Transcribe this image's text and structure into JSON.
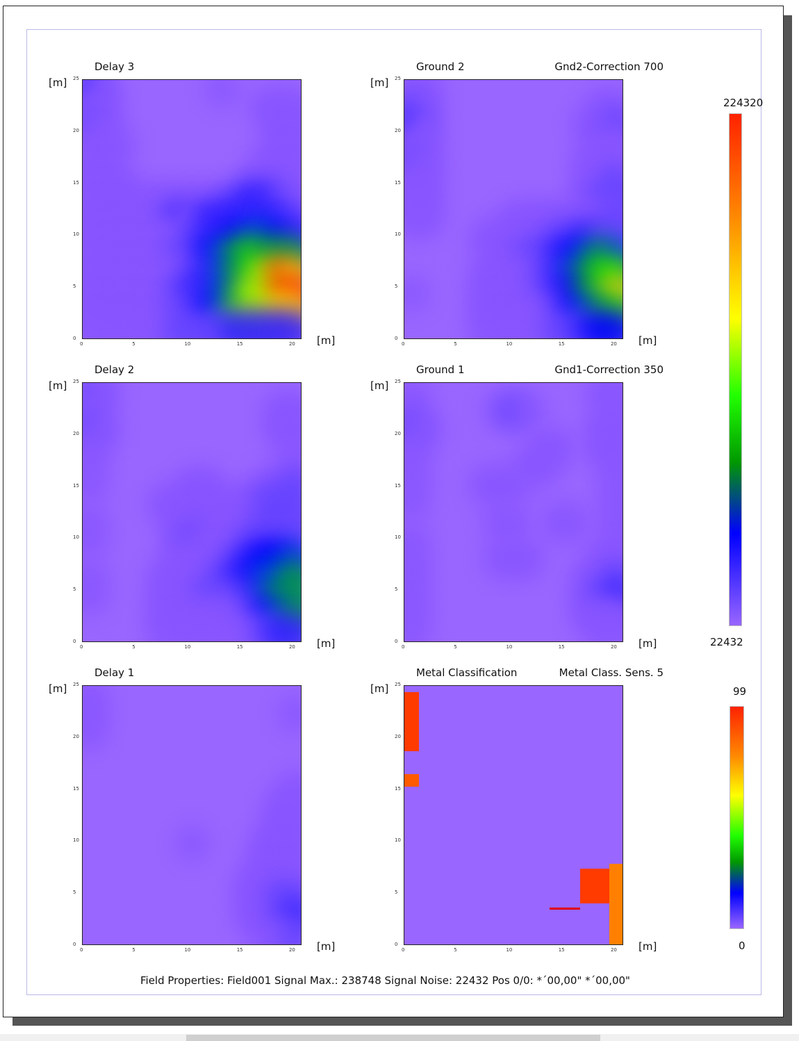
{
  "panels": [
    {
      "key": "delay3",
      "title": "Delay 3",
      "correction": ""
    },
    {
      "key": "ground2",
      "title": "Ground 2",
      "correction": "Gnd2-Correction  700"
    },
    {
      "key": "delay2",
      "title": "Delay 2",
      "correction": ""
    },
    {
      "key": "ground1",
      "title": "Ground 1",
      "correction": "Gnd1-Correction  350"
    },
    {
      "key": "delay1",
      "title": "Delay 1",
      "correction": ""
    },
    {
      "key": "metal",
      "title": "Metal Classification",
      "correction": "Metal Class. Sens.  5"
    }
  ],
  "axis_unit": "[m]",
  "colorbar_signal": {
    "max": "224320",
    "min": "22432"
  },
  "colorbar_metal": {
    "max": "99",
    "min": "0"
  },
  "footer": "Field Properties: Field001  Signal Max.:  238748  Signal Noise:  22432  Pos 0/0: *´00,00\"   *´00,00\"",
  "chart_data": {
    "type": "heatmap",
    "x_ticks": [
      "0",
      "5",
      "10",
      "15",
      "20"
    ],
    "y_ticks": [
      "0",
      "5",
      "10",
      "15",
      "20",
      "25"
    ],
    "xlim": [
      0,
      21
    ],
    "ylim": [
      0,
      25
    ],
    "colorscale": [
      "#9966ff",
      "#0000ff",
      "#00ff00",
      "#ffff00",
      "#ff0000"
    ],
    "colors": {
      "background": "#9966ff",
      "metal_red": "#ff3b00",
      "metal_orange": "#ff8000",
      "metal_line": "#e00000"
    },
    "grids": {
      "delay3": [
        [
          3,
          1,
          0,
          0,
          0,
          0,
          0,
          0,
          0,
          1,
          0,
          0,
          0,
          0,
          0
        ],
        [
          1,
          1,
          0,
          0,
          0,
          0,
          0,
          0,
          0,
          0,
          0,
          0,
          1,
          1,
          1
        ],
        [
          2,
          1,
          0,
          0,
          0,
          0,
          0,
          0,
          0,
          0,
          0,
          0,
          0,
          1,
          1
        ],
        [
          1,
          1,
          1,
          0,
          0,
          0,
          0,
          0,
          0,
          0,
          0,
          0,
          0,
          1,
          1
        ],
        [
          1,
          1,
          0,
          0,
          0,
          0,
          0,
          0,
          0,
          0,
          0,
          0,
          1,
          1,
          1
        ],
        [
          1,
          1,
          1,
          0,
          0,
          0,
          0,
          0,
          0,
          0,
          0,
          1,
          1,
          1,
          1
        ],
        [
          1,
          1,
          1,
          1,
          1,
          1,
          1,
          1,
          1,
          1,
          2,
          3,
          3,
          2,
          1
        ],
        [
          1,
          1,
          1,
          1,
          1,
          1,
          3,
          1,
          3,
          3,
          3,
          3,
          3,
          3,
          2
        ],
        [
          1,
          1,
          1,
          1,
          1,
          1,
          1,
          2,
          3,
          3,
          4,
          5,
          5,
          4,
          3
        ],
        [
          1,
          1,
          1,
          1,
          1,
          1,
          2,
          2,
          4,
          5,
          6,
          7,
          6,
          6,
          6
        ],
        [
          1,
          1,
          1,
          1,
          1,
          1,
          1,
          2,
          3,
          5,
          6,
          7,
          8,
          10,
          9
        ],
        [
          1,
          1,
          1,
          1,
          1,
          1,
          2,
          3,
          3,
          5,
          6,
          8,
          8,
          10,
          10
        ],
        [
          1,
          1,
          1,
          1,
          1,
          1,
          2,
          2,
          4,
          5,
          7,
          8,
          8,
          9,
          9
        ],
        [
          1,
          1,
          1,
          1,
          1,
          1,
          2,
          2,
          2,
          2,
          3,
          3,
          3,
          3,
          3
        ]
      ],
      "ground2": [
        [
          1,
          1,
          0,
          0,
          0,
          0,
          0,
          0,
          0,
          0,
          0,
          0,
          0,
          0,
          0
        ],
        [
          2,
          1,
          0,
          0,
          0,
          0,
          0,
          0,
          0,
          0,
          0,
          0,
          0,
          1,
          1
        ],
        [
          3,
          1,
          0,
          0,
          0,
          0,
          0,
          0,
          0,
          0,
          0,
          0,
          1,
          1,
          2
        ],
        [
          1,
          1,
          0,
          0,
          0,
          0,
          0,
          0,
          0,
          0,
          0,
          0,
          0,
          1,
          1
        ],
        [
          2,
          1,
          0,
          0,
          0,
          0,
          0,
          0,
          0,
          0,
          0,
          0,
          1,
          1,
          1
        ],
        [
          1,
          1,
          0,
          0,
          0,
          0,
          0,
          0,
          0,
          0,
          0,
          0,
          1,
          1,
          2
        ],
        [
          1,
          1,
          0,
          0,
          0,
          0,
          0,
          0,
          0,
          0,
          0,
          0,
          1,
          2,
          2
        ],
        [
          1,
          1,
          0,
          0,
          0,
          0,
          0,
          1,
          1,
          1,
          1,
          1,
          1,
          1,
          2
        ],
        [
          0,
          0,
          0,
          0,
          0,
          1,
          1,
          1,
          1,
          1,
          2,
          2,
          3,
          2,
          2
        ],
        [
          0,
          0,
          0,
          0,
          0,
          0,
          1,
          1,
          2,
          2,
          3,
          4,
          5,
          6,
          5
        ],
        [
          0,
          0,
          0,
          0,
          0,
          1,
          1,
          1,
          1,
          2,
          3,
          5,
          6,
          7,
          7
        ],
        [
          1,
          0,
          0,
          0,
          0,
          1,
          1,
          1,
          1,
          2,
          3,
          4,
          6,
          7,
          9
        ],
        [
          0,
          0,
          0,
          0,
          0,
          1,
          1,
          1,
          1,
          1,
          2,
          4,
          5,
          6,
          7
        ],
        [
          0,
          0,
          0,
          0,
          0,
          1,
          1,
          1,
          1,
          1,
          2,
          2,
          3,
          4,
          4
        ]
      ],
      "delay2": [
        [
          2,
          1,
          0,
          0,
          0,
          0,
          0,
          0,
          0,
          0,
          0,
          0,
          0,
          0,
          0
        ],
        [
          1,
          0,
          0,
          0,
          0,
          0,
          0,
          0,
          0,
          0,
          0,
          0,
          0,
          1,
          1
        ],
        [
          2,
          1,
          0,
          0,
          0,
          0,
          0,
          0,
          0,
          0,
          0,
          0,
          0,
          1,
          1
        ],
        [
          1,
          0,
          0,
          0,
          0,
          0,
          0,
          0,
          0,
          0,
          0,
          0,
          0,
          0,
          1
        ],
        [
          1,
          0,
          0,
          0,
          0,
          0,
          0,
          0,
          0,
          0,
          0,
          0,
          0,
          0,
          1
        ],
        [
          1,
          0,
          0,
          0,
          0,
          0,
          0,
          1,
          1,
          0,
          0,
          0,
          1,
          1,
          2
        ],
        [
          0,
          0,
          0,
          0,
          0,
          1,
          1,
          1,
          1,
          1,
          1,
          1,
          2,
          2,
          2
        ],
        [
          1,
          0,
          0,
          0,
          0,
          0,
          1,
          1,
          1,
          1,
          1,
          1,
          2,
          2,
          2
        ],
        [
          1,
          0,
          0,
          0,
          0,
          0,
          1,
          2,
          1,
          1,
          1,
          2,
          2,
          2,
          2
        ],
        [
          0,
          0,
          0,
          0,
          0,
          0,
          1,
          1,
          1,
          1,
          2,
          3,
          4,
          4,
          5
        ],
        [
          1,
          0,
          0,
          0,
          0,
          1,
          1,
          1,
          1,
          2,
          3,
          4,
          5,
          5,
          6
        ],
        [
          1,
          0,
          0,
          0,
          0,
          1,
          1,
          1,
          2,
          2,
          2,
          3,
          5,
          6,
          6
        ],
        [
          0,
          0,
          0,
          0,
          0,
          1,
          1,
          1,
          1,
          1,
          1,
          2,
          4,
          5,
          6
        ],
        [
          0,
          0,
          0,
          0,
          0,
          1,
          1,
          1,
          1,
          1,
          1,
          1,
          2,
          3,
          3
        ]
      ],
      "ground1": [
        [
          1,
          0,
          0,
          0,
          0,
          0,
          0,
          0,
          0,
          0,
          0,
          0,
          0,
          1,
          1
        ],
        [
          1,
          0,
          0,
          0,
          0,
          0,
          1,
          2,
          1,
          0,
          0,
          0,
          0,
          0,
          1
        ],
        [
          2,
          1,
          0,
          0,
          0,
          0,
          0,
          0,
          0,
          0,
          0,
          0,
          0,
          1,
          1
        ],
        [
          1,
          0,
          0,
          0,
          0,
          0,
          0,
          0,
          0,
          1,
          1,
          0,
          0,
          1,
          1
        ],
        [
          1,
          0,
          0,
          0,
          0,
          0,
          0,
          0,
          1,
          1,
          0,
          0,
          0,
          0,
          1
        ],
        [
          1,
          0,
          0,
          0,
          0,
          1,
          1,
          1,
          0,
          0,
          0,
          0,
          0,
          0,
          1
        ],
        [
          1,
          0,
          0,
          0,
          0,
          0,
          0,
          0,
          0,
          0,
          0,
          0,
          0,
          0,
          1
        ],
        [
          0,
          0,
          0,
          0,
          0,
          0,
          1,
          1,
          0,
          0,
          1,
          1,
          0,
          0,
          1
        ],
        [
          1,
          0,
          0,
          0,
          0,
          0,
          0,
          0,
          0,
          0,
          0,
          0,
          0,
          0,
          1
        ],
        [
          1,
          0,
          0,
          0,
          0,
          0,
          1,
          1,
          1,
          0,
          0,
          0,
          0,
          1,
          1
        ],
        [
          1,
          0,
          0,
          0,
          0,
          0,
          0,
          0,
          0,
          0,
          0,
          0,
          1,
          1,
          2
        ],
        [
          1,
          0,
          0,
          0,
          0,
          0,
          0,
          0,
          0,
          0,
          0,
          0,
          1,
          2,
          3
        ],
        [
          1,
          0,
          0,
          0,
          0,
          0,
          0,
          0,
          0,
          0,
          0,
          0,
          1,
          1,
          1
        ],
        [
          1,
          0,
          0,
          0,
          0,
          0,
          0,
          0,
          0,
          0,
          0,
          0,
          0,
          1,
          1
        ]
      ],
      "delay1": [
        [
          1,
          0,
          0,
          0,
          0,
          0,
          0,
          0,
          0,
          0,
          0,
          0,
          0,
          0,
          0
        ],
        [
          1,
          0,
          0,
          0,
          0,
          0,
          0,
          0,
          0,
          0,
          0,
          0,
          0,
          0,
          1
        ],
        [
          1,
          0,
          0,
          0,
          0,
          0,
          0,
          0,
          0,
          0,
          0,
          0,
          0,
          0,
          0
        ],
        [
          0,
          0,
          0,
          0,
          0,
          0,
          0,
          0,
          0,
          0,
          0,
          0,
          0,
          0,
          0
        ],
        [
          0,
          0,
          0,
          0,
          0,
          0,
          0,
          0,
          0,
          0,
          0,
          0,
          0,
          0,
          0
        ],
        [
          0,
          0,
          0,
          0,
          0,
          0,
          0,
          0,
          0,
          0,
          0,
          0,
          0,
          0,
          1
        ],
        [
          0,
          0,
          0,
          0,
          0,
          0,
          0,
          0,
          0,
          0,
          0,
          0,
          0,
          1,
          1
        ],
        [
          0,
          0,
          0,
          0,
          0,
          0,
          0,
          0,
          0,
          0,
          0,
          0,
          0,
          1,
          1
        ],
        [
          0,
          0,
          0,
          0,
          0,
          0,
          0,
          1,
          0,
          0,
          0,
          0,
          1,
          1,
          1
        ],
        [
          0,
          0,
          0,
          0,
          0,
          0,
          0,
          0,
          0,
          0,
          0,
          0,
          1,
          1,
          1
        ],
        [
          0,
          0,
          0,
          0,
          0,
          0,
          0,
          0,
          0,
          0,
          0,
          1,
          1,
          1,
          1
        ],
        [
          0,
          0,
          0,
          0,
          0,
          0,
          0,
          0,
          0,
          0,
          0,
          1,
          1,
          2,
          2
        ],
        [
          0,
          0,
          0,
          0,
          0,
          0,
          0,
          0,
          0,
          0,
          0,
          1,
          1,
          2,
          3
        ],
        [
          0,
          0,
          0,
          0,
          0,
          0,
          0,
          0,
          0,
          0,
          0,
          0,
          1,
          1,
          2
        ]
      ]
    },
    "metal_regions": [
      {
        "x0": 0,
        "x1": 1.4,
        "y0": 18.7,
        "y1": 24.4,
        "color": "#ff3b00"
      },
      {
        "x0": 0,
        "x1": 1.4,
        "y0": 15.3,
        "y1": 16.5,
        "color": "#ff5a00"
      },
      {
        "x0": 16.8,
        "x1": 19.6,
        "y0": 4.1,
        "y1": 7.4,
        "color": "#ff3b00"
      },
      {
        "x0": 19.6,
        "x1": 21,
        "y0": 0,
        "y1": 7.9,
        "color": "#ff8000"
      },
      {
        "x0": 13.9,
        "x1": 16.8,
        "y0": 3.5,
        "y1": 3.7,
        "color": "#e00000"
      }
    ]
  }
}
